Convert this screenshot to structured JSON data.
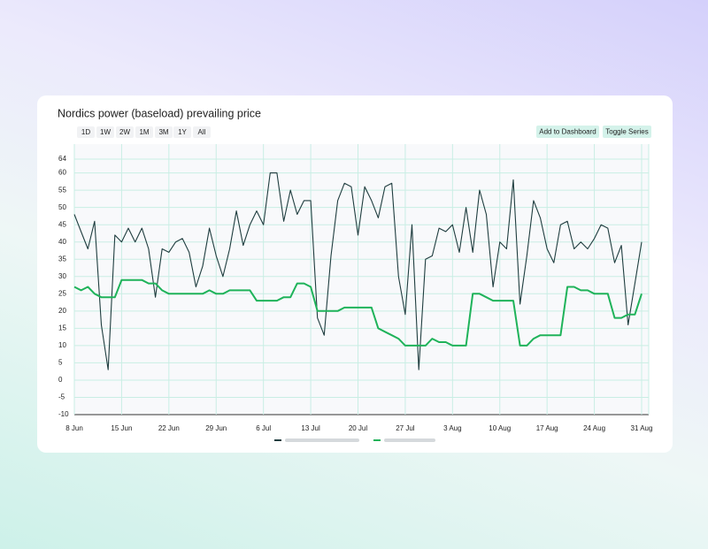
{
  "ui": {
    "ranges": [
      "1D",
      "1W",
      "2W",
      "1M",
      "3M",
      "1Y",
      "All"
    ],
    "actions": [
      "Add to Dashboard",
      "Toggle Series"
    ]
  },
  "chart_data": {
    "type": "line",
    "title": "Nordics power (baseload) prevailing price",
    "x": [
      "8 Jun",
      "9 Jun",
      "10 Jun",
      "11 Jun",
      "12 Jun",
      "13 Jun",
      "14 Jun",
      "15 Jun",
      "16 Jun",
      "17 Jun",
      "18 Jun",
      "19 Jun",
      "20 Jun",
      "21 Jun",
      "22 Jun",
      "23 Jun",
      "24 Jun",
      "25 Jun",
      "26 Jun",
      "27 Jun",
      "28 Jun",
      "29 Jun",
      "30 Jun",
      "1 Jul",
      "2 Jul",
      "3 Jul",
      "4 Jul",
      "5 Jul",
      "6 Jul",
      "7 Jul",
      "8 Jul",
      "9 Jul",
      "10 Jul",
      "11 Jul",
      "12 Jul",
      "13 Jul",
      "14 Jul",
      "15 Jul",
      "16 Jul",
      "17 Jul",
      "18 Jul",
      "19 Jul",
      "20 Jul",
      "21 Jul",
      "22 Jul",
      "23 Jul",
      "24 Jul",
      "25 Jul",
      "26 Jul",
      "27 Jul",
      "28 Jul",
      "29 Jul",
      "30 Jul",
      "31 Jul",
      "1 Aug",
      "2 Aug",
      "3 Aug",
      "4 Aug",
      "5 Aug",
      "6 Aug",
      "7 Aug",
      "8 Aug",
      "9 Aug",
      "10 Aug",
      "11 Aug",
      "12 Aug",
      "13 Aug",
      "14 Aug",
      "15 Aug",
      "16 Aug",
      "17 Aug",
      "18 Aug",
      "19 Aug",
      "20 Aug",
      "21 Aug",
      "22 Aug",
      "23 Aug",
      "24 Aug",
      "25 Aug",
      "26 Aug",
      "27 Aug",
      "28 Aug",
      "29 Aug",
      "30 Aug",
      "31 Aug"
    ],
    "series": [
      {
        "color": "#1f3d3f",
        "values": [
          48,
          43,
          38,
          46,
          16,
          3,
          42,
          40,
          44,
          40,
          44,
          38,
          24,
          38,
          37,
          40,
          41,
          37,
          27,
          33,
          44,
          36,
          30,
          38,
          49,
          39,
          45,
          49,
          45,
          60,
          60,
          46,
          55,
          48,
          52,
          52,
          18,
          13,
          36,
          52,
          57,
          56,
          42,
          56,
          52,
          47,
          56,
          57,
          30,
          19,
          45,
          3,
          35,
          36,
          44,
          43,
          45,
          37,
          50,
          37,
          55,
          48,
          27,
          40,
          38,
          58,
          22,
          36,
          52,
          47,
          38,
          34,
          45,
          46,
          38,
          40,
          38,
          41,
          45,
          44,
          34,
          39,
          16,
          28,
          40
        ]
      },
      {
        "color": "#1fb35a",
        "values": [
          27,
          26,
          27,
          25,
          24,
          24,
          24,
          29,
          29,
          29,
          29,
          28,
          28,
          26,
          25,
          25,
          25,
          25,
          25,
          25,
          26,
          25,
          25,
          26,
          26,
          26,
          26,
          23,
          23,
          23,
          23,
          24,
          24,
          28,
          28,
          27,
          20,
          20,
          20,
          20,
          21,
          21,
          21,
          21,
          21,
          15,
          14,
          13,
          12,
          10,
          10,
          10,
          10,
          12,
          11,
          11,
          10,
          10,
          10,
          25,
          25,
          24,
          23,
          23,
          23,
          23,
          10,
          10,
          12,
          13,
          13,
          13,
          13,
          27,
          27,
          26,
          26,
          25,
          25,
          25,
          18,
          18,
          19,
          19,
          25
        ]
      }
    ],
    "xticks": [
      "8 Jun",
      "15 Jun",
      "22 Jun",
      "29 Jun",
      "6 Jul",
      "13 Jul",
      "20 Jul",
      "27 Jul",
      "3 Aug",
      "10 Aug",
      "17 Aug",
      "24 Aug",
      "31 Aug"
    ],
    "ylim": [
      -10,
      64
    ],
    "yticks": [
      -10,
      -5,
      0,
      5,
      10,
      15,
      20,
      25,
      30,
      35,
      40,
      45,
      50,
      55,
      60,
      64
    ],
    "grid": true
  }
}
